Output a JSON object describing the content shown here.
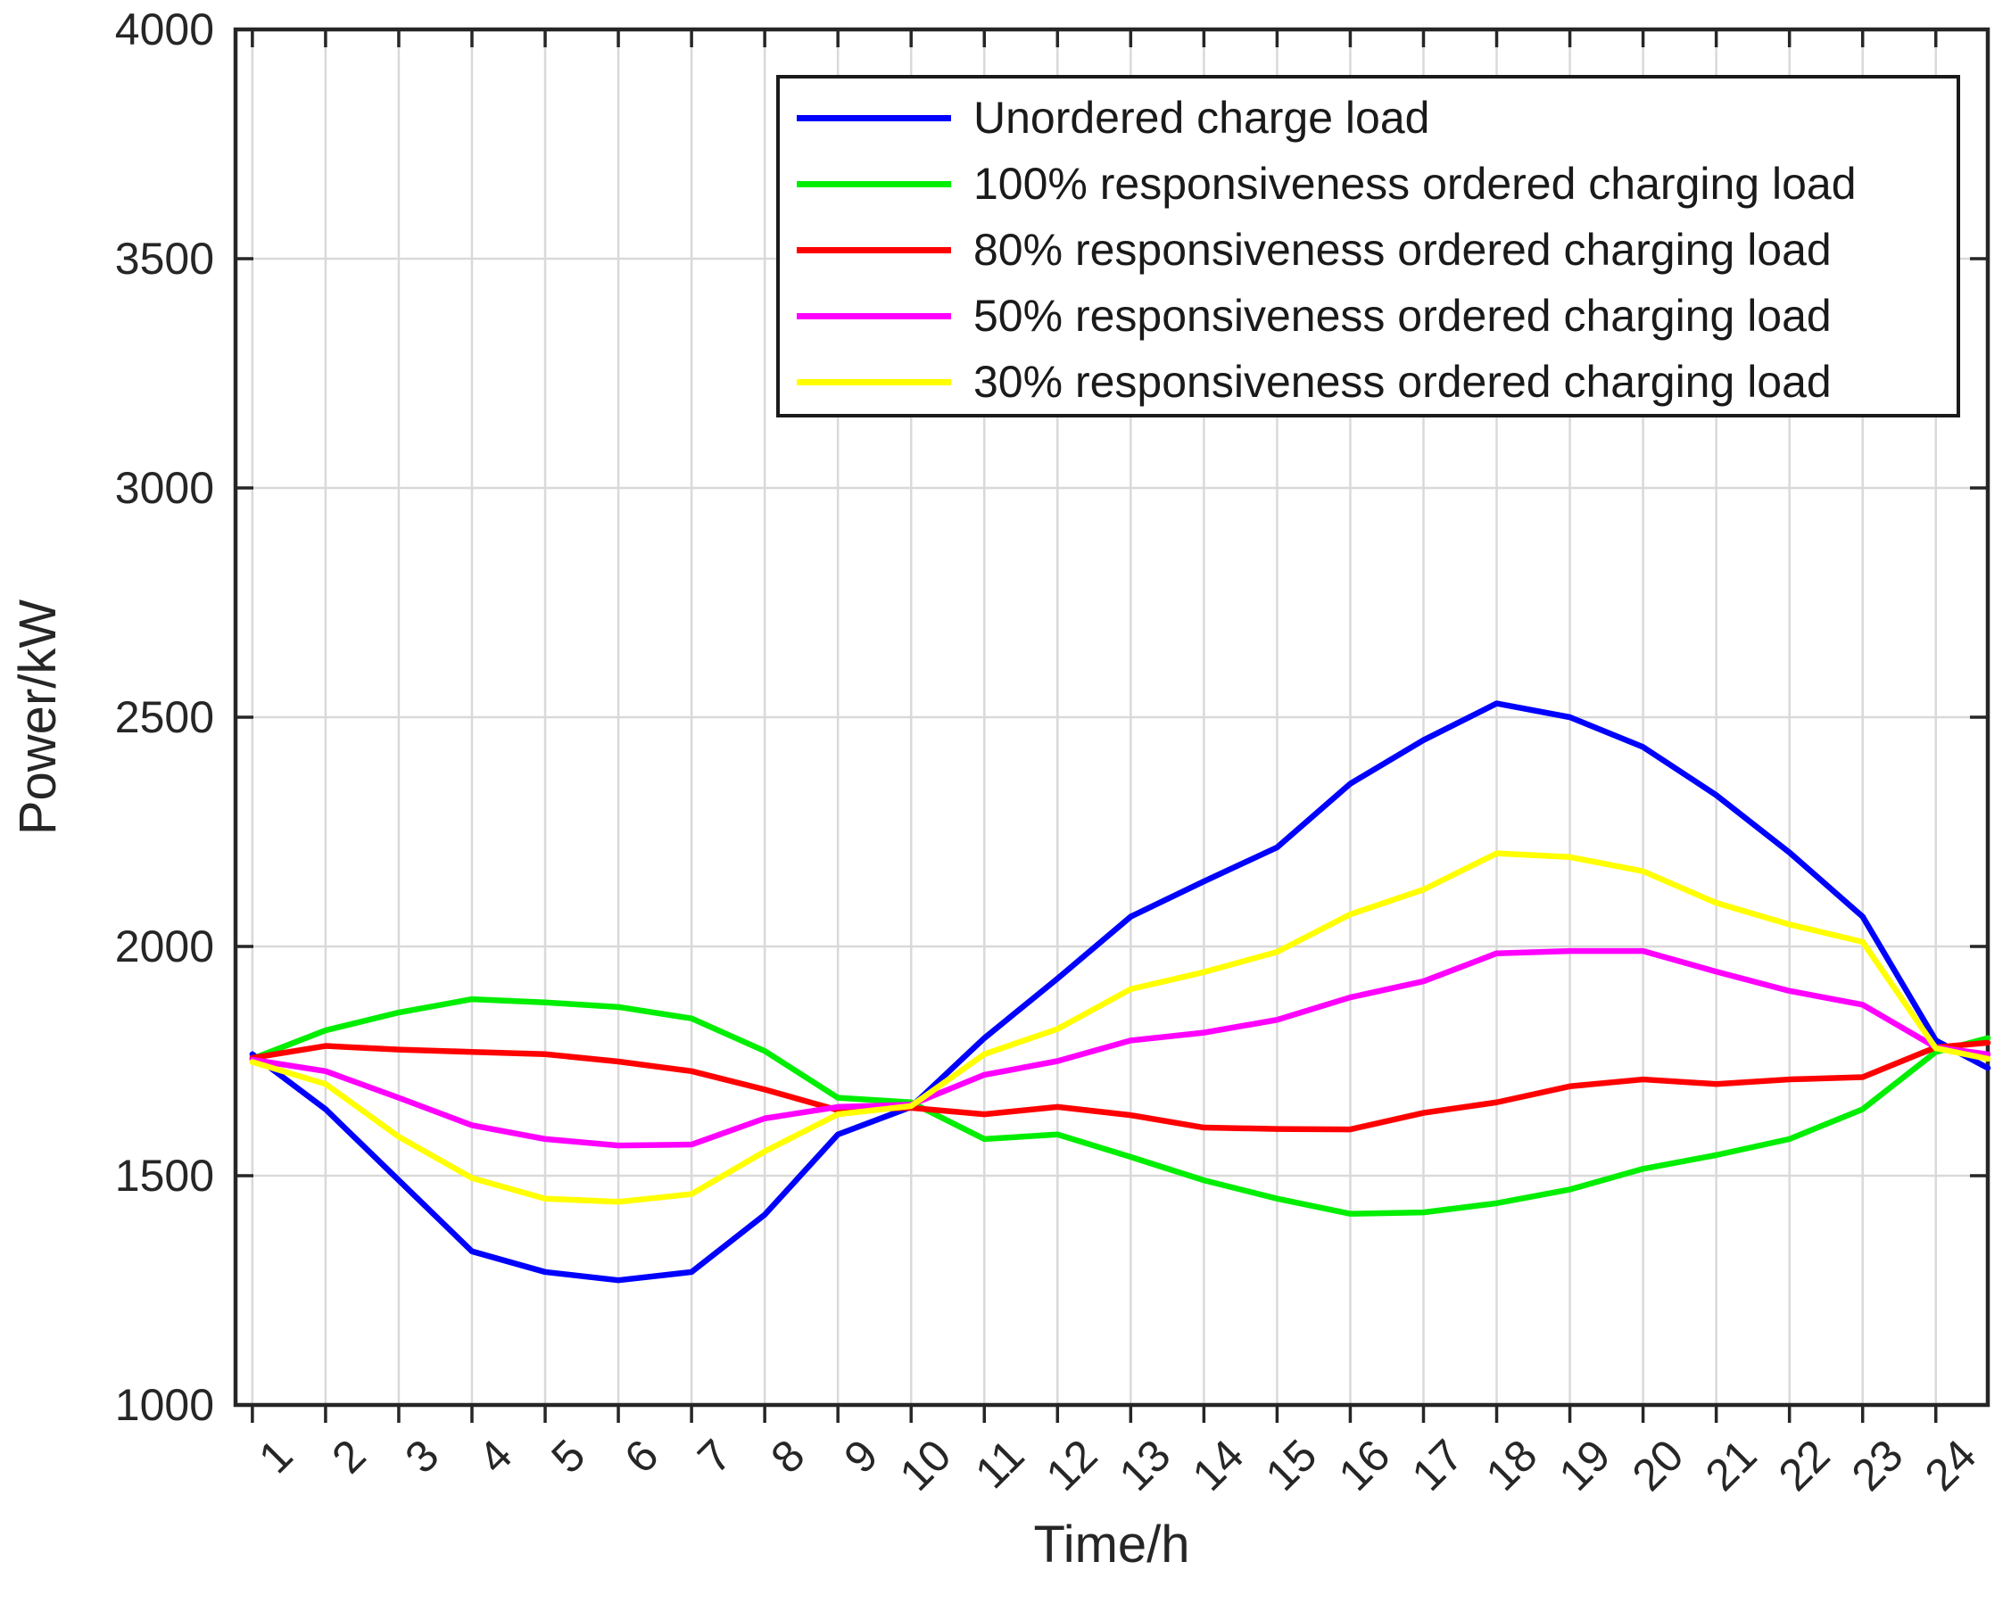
{
  "figure": {
    "background_color": "#FFFFFF",
    "axis_color": "#262626",
    "grid_color": "#D9D9D9",
    "plot_background": "#FFFFFF"
  },
  "chart_data": {
    "type": "line",
    "title": "",
    "xlabel": "Time/h",
    "ylabel": "Power/kW",
    "x": [
      1,
      2,
      3,
      4,
      5,
      6,
      7,
      8,
      9,
      10,
      11,
      12,
      13,
      14,
      15,
      16,
      17,
      18,
      19,
      20,
      21,
      22,
      23,
      24
    ],
    "xtick_labels": [
      "1",
      "2",
      "3",
      "4",
      "5",
      "6",
      "7",
      "8",
      "9",
      "10",
      "11",
      "12",
      "13",
      "14",
      "15",
      "16",
      "17",
      "18",
      "19",
      "20",
      "21",
      "22",
      "23",
      "24"
    ],
    "yticks": [
      1000,
      1500,
      2000,
      2500,
      3000,
      3500,
      4000
    ],
    "ytick_labels": [
      "1000",
      "1500",
      "2000",
      "2500",
      "3000",
      "3500",
      "4000"
    ],
    "xlim": [
      0.77,
      24.71
    ],
    "ylim": [
      1000,
      4000
    ],
    "grid": true,
    "legend_position": "upper right inside",
    "series": [
      {
        "name": "Unordered charge load",
        "color": "#0000FF",
        "values": [
          1765,
          1645,
          1490,
          1335,
          1290,
          1272,
          1290,
          1415,
          1590,
          1650,
          1800,
          1930,
          2065,
          2142,
          2216,
          2355,
          2450,
          2530,
          2500,
          2435,
          2330,
          2205,
          2065,
          1795
        ],
        "edge_value": 1735
      },
      {
        "name": "100% responsiveness ordered charging load",
        "color": "#00EE00",
        "values": [
          1755,
          1817,
          1856,
          1885,
          1878,
          1868,
          1843,
          1772,
          1670,
          1660,
          1580,
          1590,
          1541,
          1490,
          1450,
          1417,
          1420,
          1440,
          1470,
          1515,
          1545,
          1580,
          1645,
          1770
        ],
        "edge_value": 1800
      },
      {
        "name": "80% responsiveness ordered charging load",
        "color": "#FF0000",
        "values": [
          1757,
          1783,
          1775,
          1770,
          1765,
          1749,
          1728,
          1688,
          1643,
          1648,
          1634,
          1650,
          1632,
          1605,
          1602,
          1601,
          1637,
          1660,
          1695,
          1710,
          1700,
          1710,
          1715,
          1780
        ],
        "edge_value": 1790
      },
      {
        "name": "50% responsiveness ordered charging load",
        "color": "#FF00FF",
        "values": [
          1753,
          1728,
          1670,
          1610,
          1580,
          1566,
          1568,
          1625,
          1650,
          1655,
          1720,
          1750,
          1795,
          1812,
          1840,
          1889,
          1924,
          1985,
          1990,
          1990,
          1945,
          1903,
          1873,
          1780
        ],
        "edge_value": 1765
      },
      {
        "name": "30% responsiveness ordered charging load",
        "color": "#FFFF00",
        "values": [
          1748,
          1700,
          1585,
          1495,
          1450,
          1443,
          1460,
          1553,
          1634,
          1652,
          1765,
          1820,
          1907,
          1944,
          1988,
          2070,
          2124,
          2203,
          2195,
          2164,
          2095,
          2048,
          2010,
          1778
        ],
        "edge_value": 1755
      }
    ]
  }
}
